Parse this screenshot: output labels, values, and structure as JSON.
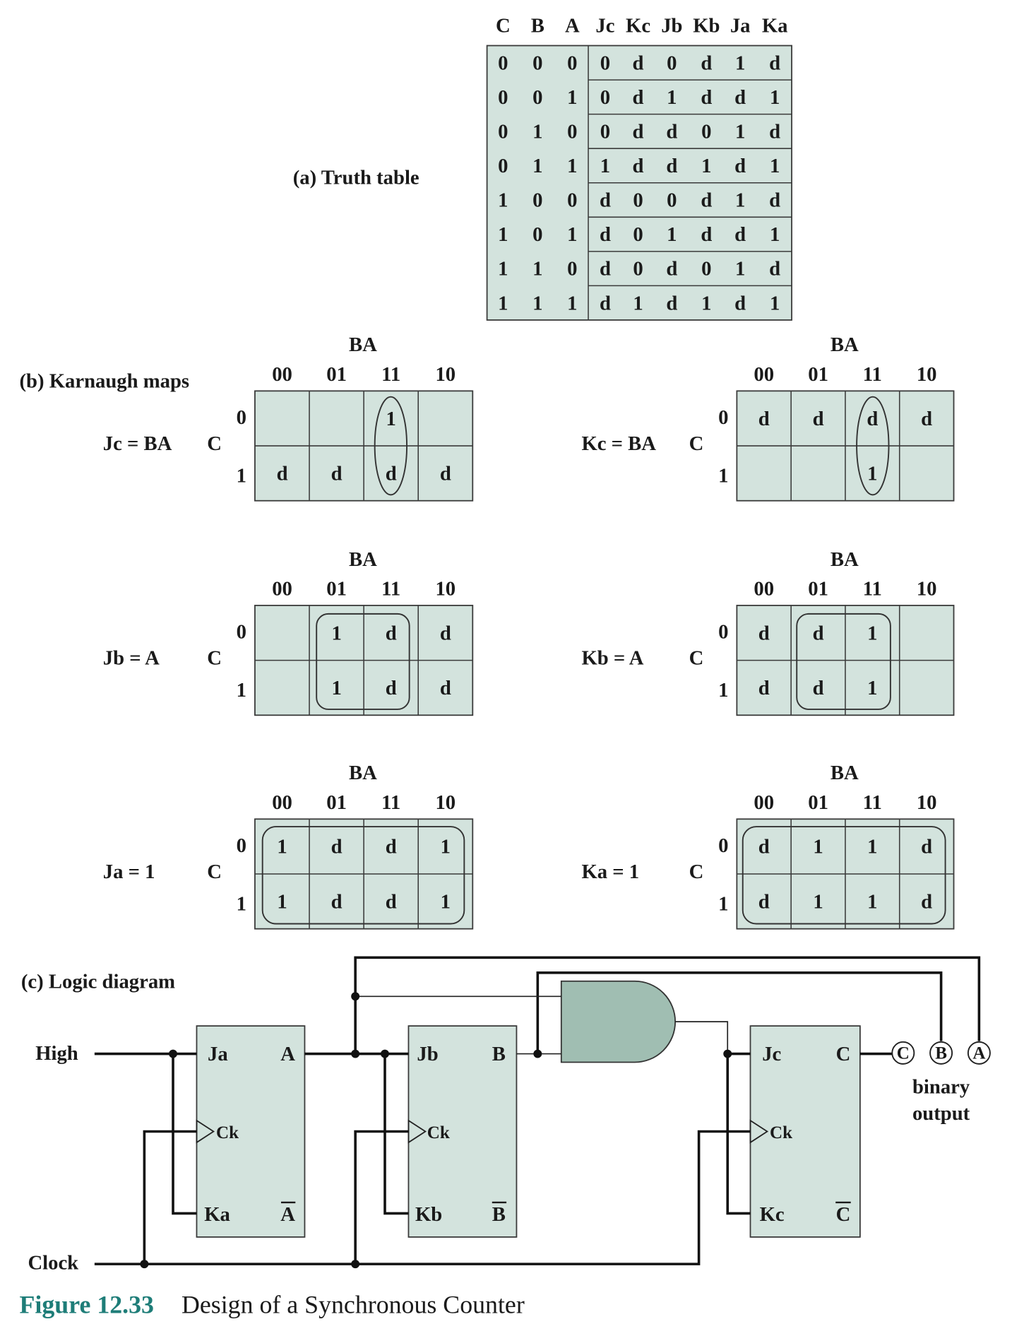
{
  "truth_table": {
    "label": "(a) Truth table",
    "headers": [
      "C",
      "B",
      "A",
      "Jc",
      "Kc",
      "Jb",
      "Kb",
      "Ja",
      "Ka"
    ],
    "rows": [
      [
        "0",
        "0",
        "0",
        "0",
        "d",
        "0",
        "d",
        "1",
        "d"
      ],
      [
        "0",
        "0",
        "1",
        "0",
        "d",
        "1",
        "d",
        "d",
        "1"
      ],
      [
        "0",
        "1",
        "0",
        "0",
        "d",
        "d",
        "0",
        "1",
        "d"
      ],
      [
        "0",
        "1",
        "1",
        "1",
        "d",
        "d",
        "1",
        "d",
        "1"
      ],
      [
        "1",
        "0",
        "0",
        "d",
        "0",
        "0",
        "d",
        "1",
        "d"
      ],
      [
        "1",
        "0",
        "1",
        "d",
        "0",
        "1",
        "d",
        "d",
        "1"
      ],
      [
        "1",
        "1",
        "0",
        "d",
        "0",
        "d",
        "0",
        "1",
        "d"
      ],
      [
        "1",
        "1",
        "1",
        "d",
        "1",
        "d",
        "1",
        "d",
        "1"
      ]
    ]
  },
  "karnaugh": {
    "label": "(b) Karnaugh maps",
    "maps": [
      {
        "equation": "Jc = BA",
        "column_var": "BA",
        "row_var": "C",
        "columns": [
          "00",
          "01",
          "11",
          "10"
        ],
        "rows": [
          "0",
          "1"
        ],
        "cells": [
          [
            "",
            "",
            "1",
            ""
          ],
          [
            "d",
            "d",
            "d",
            "d"
          ]
        ]
      },
      {
        "equation": "Kc = BA",
        "column_var": "BA",
        "row_var": "C",
        "columns": [
          "00",
          "01",
          "11",
          "10"
        ],
        "rows": [
          "0",
          "1"
        ],
        "cells": [
          [
            "d",
            "d",
            "d",
            "d"
          ],
          [
            "",
            "",
            "1",
            ""
          ]
        ]
      },
      {
        "equation": "Jb = A",
        "column_var": "BA",
        "row_var": "C",
        "columns": [
          "00",
          "01",
          "11",
          "10"
        ],
        "rows": [
          "0",
          "1"
        ],
        "cells": [
          [
            "",
            "1",
            "d",
            "d"
          ],
          [
            "",
            "1",
            "d",
            "d"
          ]
        ]
      },
      {
        "equation": "Kb = A",
        "column_var": "BA",
        "row_var": "C",
        "columns": [
          "00",
          "01",
          "11",
          "10"
        ],
        "rows": [
          "0",
          "1"
        ],
        "cells": [
          [
            "d",
            "d",
            "1",
            ""
          ],
          [
            "d",
            "d",
            "1",
            ""
          ]
        ]
      },
      {
        "equation": "Ja = 1",
        "column_var": "BA",
        "row_var": "C",
        "columns": [
          "00",
          "01",
          "11",
          "10"
        ],
        "rows": [
          "0",
          "1"
        ],
        "cells": [
          [
            "1",
            "d",
            "d",
            "1"
          ],
          [
            "1",
            "d",
            "d",
            "1"
          ]
        ]
      },
      {
        "equation": "Ka = 1",
        "column_var": "BA",
        "row_var": "C",
        "columns": [
          "00",
          "01",
          "11",
          "10"
        ],
        "rows": [
          "0",
          "1"
        ],
        "cells": [
          [
            "d",
            "1",
            "1",
            "d"
          ],
          [
            "d",
            "1",
            "1",
            "d"
          ]
        ]
      }
    ]
  },
  "logic": {
    "label": "(c) Logic diagram",
    "high_label": "High",
    "clock_label": "Clock",
    "flip_flops": [
      {
        "j": "Ja",
        "k": "Ka",
        "q": "A",
        "q_bar": "A",
        "clock": "Ck"
      },
      {
        "j": "Jb",
        "k": "Kb",
        "q": "B",
        "q_bar": "B",
        "clock": "Ck"
      },
      {
        "j": "Jc",
        "k": "Kc",
        "q": "C",
        "q_bar": "C",
        "clock": "Ck"
      }
    ],
    "outputs": [
      "C",
      "B",
      "A"
    ],
    "output_label": [
      "binary",
      "output"
    ]
  },
  "caption": {
    "number": "Figure 12.33",
    "title": "Design of a Synchronous Counter"
  },
  "colors": {
    "panel_fill": "#d3e3dd",
    "gate_fill": "#a0beb2",
    "caption_accent": "#1e7d78",
    "ink": "#1a1a1a"
  }
}
